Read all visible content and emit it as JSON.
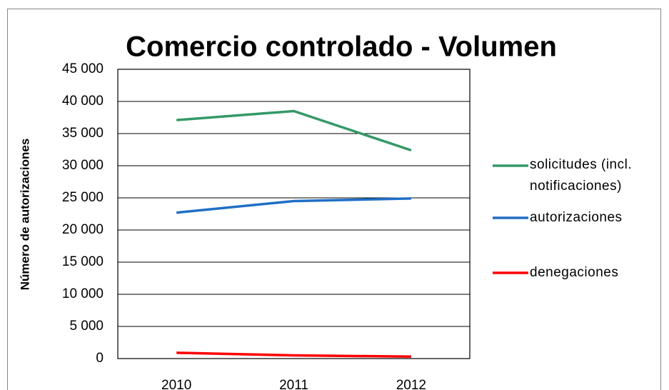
{
  "chart_data": {
    "type": "line",
    "title": "Comercio controlado - Volumen",
    "y_label": "Número de autorizaciones",
    "categories": [
      "2010",
      "2011",
      "2012"
    ],
    "series": [
      {
        "name": "solicitudes (incl. notificaciones)",
        "color": "#339966",
        "values": [
          37100,
          38500,
          32400
        ]
      },
      {
        "name": "autorizaciones",
        "color": "#1f6fc5",
        "values": [
          22700,
          24500,
          24900
        ]
      },
      {
        "name": "denegaciones",
        "color": "#ff0000",
        "values": [
          900,
          500,
          300
        ]
      }
    ],
    "ylim": [
      0,
      45000
    ],
    "yticks": [
      0,
      {
        "value": 5000,
        "label": "5 000"
      },
      {
        "value": 10000,
        "label": "10 000"
      },
      {
        "value": 15000,
        "label": "15 000"
      },
      {
        "value": 20000,
        "label": "20 000"
      },
      {
        "value": 25000,
        "label": "25 000"
      },
      {
        "value": 30000,
        "label": "30 000"
      },
      {
        "value": 35000,
        "label": "35 000"
      },
      {
        "value": 40000,
        "label": "40 000"
      },
      {
        "value": 45000,
        "label": "45 000"
      }
    ],
    "grid": true,
    "legend": "right"
  }
}
